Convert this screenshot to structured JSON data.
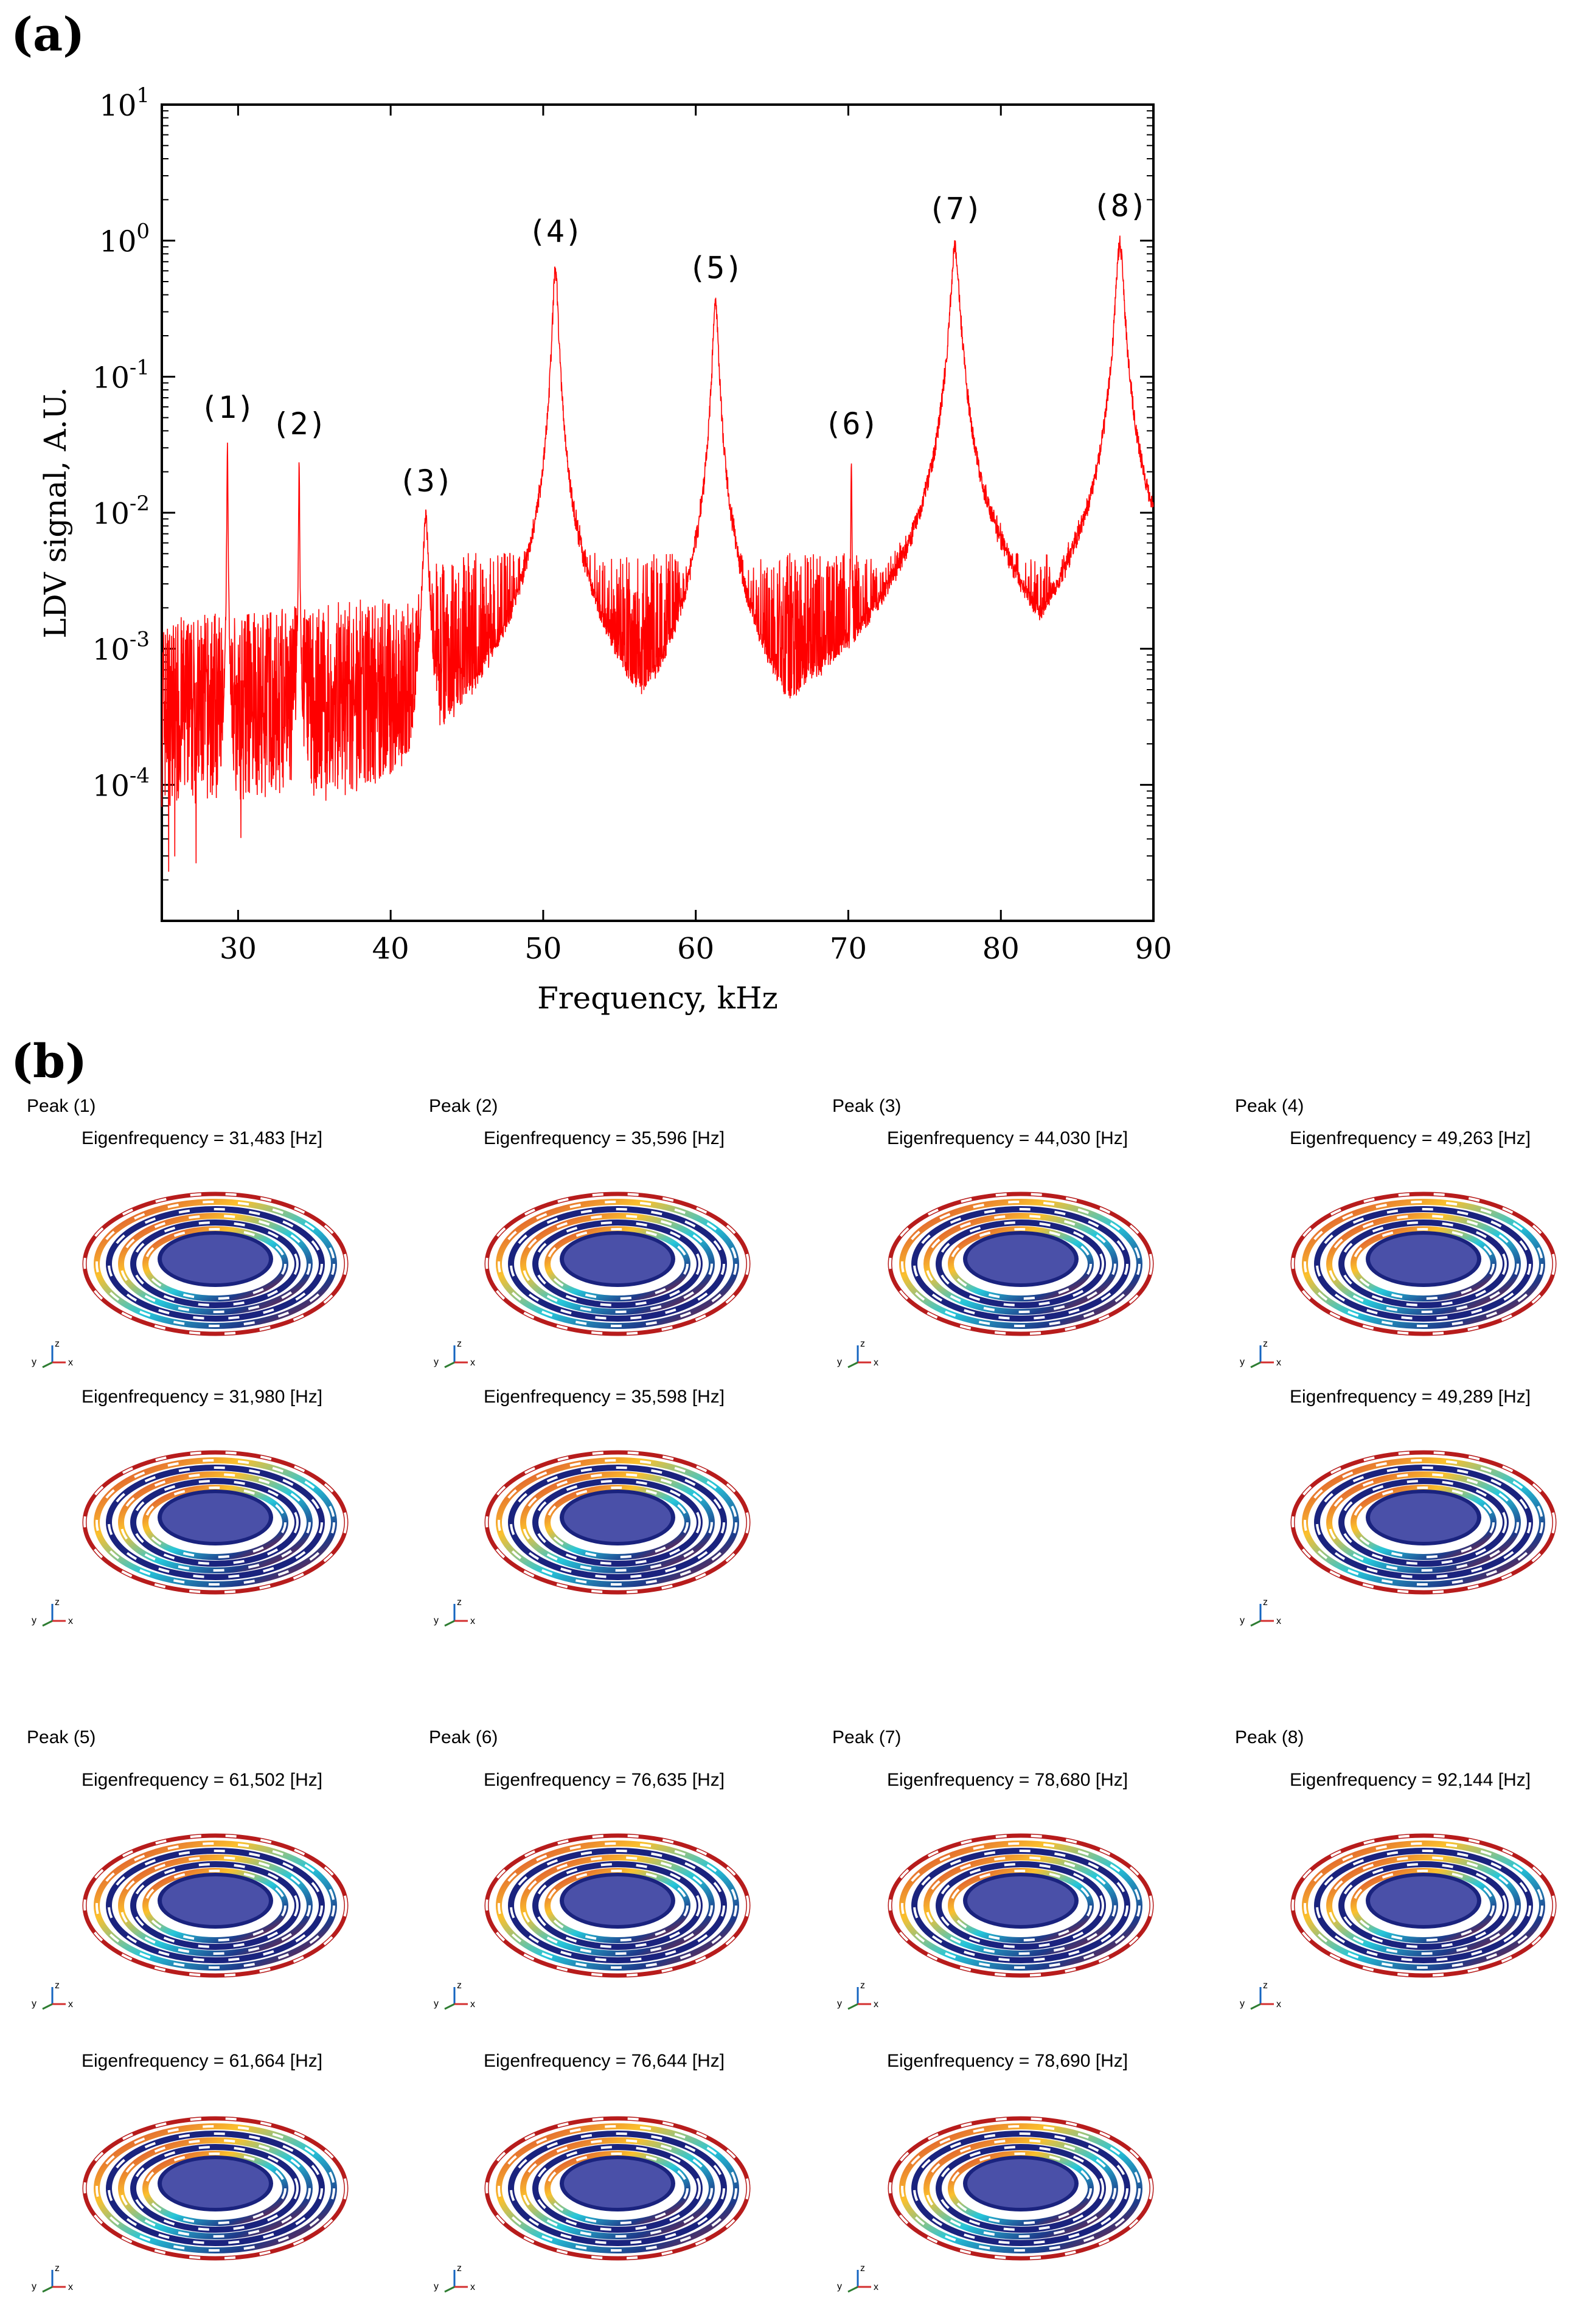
{
  "panel_a_label": "(a)",
  "panel_b_label": "(b)",
  "chart_data": {
    "type": "line",
    "xlabel": "Frequency, kHz",
    "ylabel": "LDV signal, A.U.",
    "xlim": [
      25,
      90
    ],
    "ylim_log10": [
      -5,
      1
    ],
    "yscale": "log",
    "xticks": [
      30,
      40,
      50,
      60,
      70,
      80,
      90
    ],
    "yticks": [
      {
        "base": "10",
        "exp": "1"
      },
      {
        "base": "10",
        "exp": "0"
      },
      {
        "base": "10",
        "exp": "-1"
      },
      {
        "base": "10",
        "exp": "-2"
      },
      {
        "base": "10",
        "exp": "-3"
      },
      {
        "base": "10",
        "exp": "-4"
      }
    ],
    "line_color": "#ff0000",
    "noise_floor": [
      {
        "x": 25,
        "y": 0.0004
      },
      {
        "x": 42,
        "y": 0.0006
      },
      {
        "x": 43,
        "y": 0.0012
      },
      {
        "x": 62,
        "y": 0.0012
      },
      {
        "x": 75,
        "y": 0.0012
      },
      {
        "x": 80,
        "y": 0.0012
      },
      {
        "x": 90,
        "y": 0.0012
      }
    ],
    "peaks": [
      {
        "label": "(1)",
        "x": 29.3,
        "y": 0.033,
        "width": 0.15
      },
      {
        "label": "(2)",
        "x": 34.0,
        "y": 0.025,
        "width": 0.15
      },
      {
        "label": "(3)",
        "x": 42.3,
        "y": 0.0095,
        "width": 0.9
      },
      {
        "label": "(4)",
        "x": 50.8,
        "y": 0.65,
        "width": 0.9
      },
      {
        "label": "(5)",
        "x": 61.3,
        "y": 0.35,
        "width": 1.0
      },
      {
        "label": "(6)",
        "x": 70.2,
        "y": 0.025,
        "width": 0.15
      },
      {
        "label": "(7)",
        "x": 77.0,
        "y": 0.95,
        "width": 1.4
      },
      {
        "label": "(8)",
        "x": 87.8,
        "y": 1.0,
        "width": 1.3
      }
    ]
  },
  "panel_b": {
    "row1_titles": [
      "Peak (1)",
      "Peak (2)",
      "Peak (3)",
      "Peak (4)"
    ],
    "row1_eig": [
      "Eigenfrequency = 31,483 [Hz]",
      "Eigenfrequency = 35,596 [Hz]",
      "Eigenfrequency = 44,030 [Hz]",
      "Eigenfrequency = 49,263 [Hz]"
    ],
    "row2_eig": [
      "Eigenfrequency = 31,980 [Hz]",
      "Eigenfrequency = 35,598 [Hz]",
      "",
      "Eigenfrequency = 49,289 [Hz]"
    ],
    "row3_titles": [
      "Peak (5)",
      "Peak (6)",
      "Peak (7)",
      "Peak (8)"
    ],
    "row3_eig": [
      "Eigenfrequency = 61,502 [Hz]",
      "Eigenfrequency = 76,635 [Hz]",
      "Eigenfrequency = 78,680 [Hz]",
      "Eigenfrequency = 92,144 [Hz]"
    ],
    "row4_eig": [
      "Eigenfrequency = 61,664 [Hz]",
      "Eigenfrequency = 76,644 [Hz]",
      "Eigenfrequency = 78,690 [Hz]",
      ""
    ],
    "axis_labels": {
      "y": "y",
      "z": "z",
      "x": "x"
    },
    "colors": {
      "blue": "#1a237e",
      "center": "#4a50a8",
      "red": "#b71c1c"
    }
  }
}
